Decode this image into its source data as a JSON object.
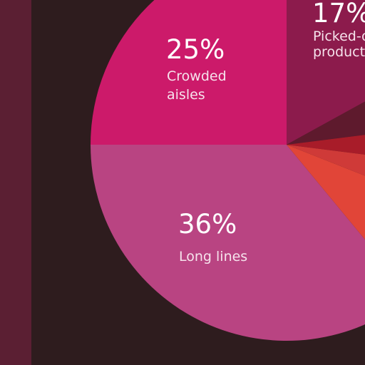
{
  "chart_data": {
    "type": "pie",
    "title": "",
    "slices": [
      {
        "label": "Long lines",
        "value": 36,
        "display": "36%",
        "color": "#b94482",
        "text_lines": [
          "Long lines"
        ]
      },
      {
        "label": "Crowded aisles",
        "value": 25,
        "display": "25%",
        "color": "#cc1a6a",
        "text_lines": [
          "Crowded",
          "aisles"
        ]
      },
      {
        "label": "Picked-over products",
        "value": 17,
        "display": "17%",
        "color": "#8c1b4c",
        "text_lines": [
          "Picked-o",
          "product"
        ]
      },
      {
        "label": "",
        "value": 6,
        "display": "",
        "color": "#5e1a2d",
        "text_lines": []
      },
      {
        "label": "",
        "value": 4,
        "display": "",
        "color": "#a81c29",
        "text_lines": []
      },
      {
        "label": "",
        "value": 4,
        "display": "",
        "color": "#cf3a38",
        "text_lines": []
      },
      {
        "label": "",
        "value": 8,
        "display": "",
        "color": "#e14538",
        "text_lines": []
      }
    ]
  },
  "colors": {
    "background": "#2e1c1e",
    "left_band": "#5b1f33"
  }
}
